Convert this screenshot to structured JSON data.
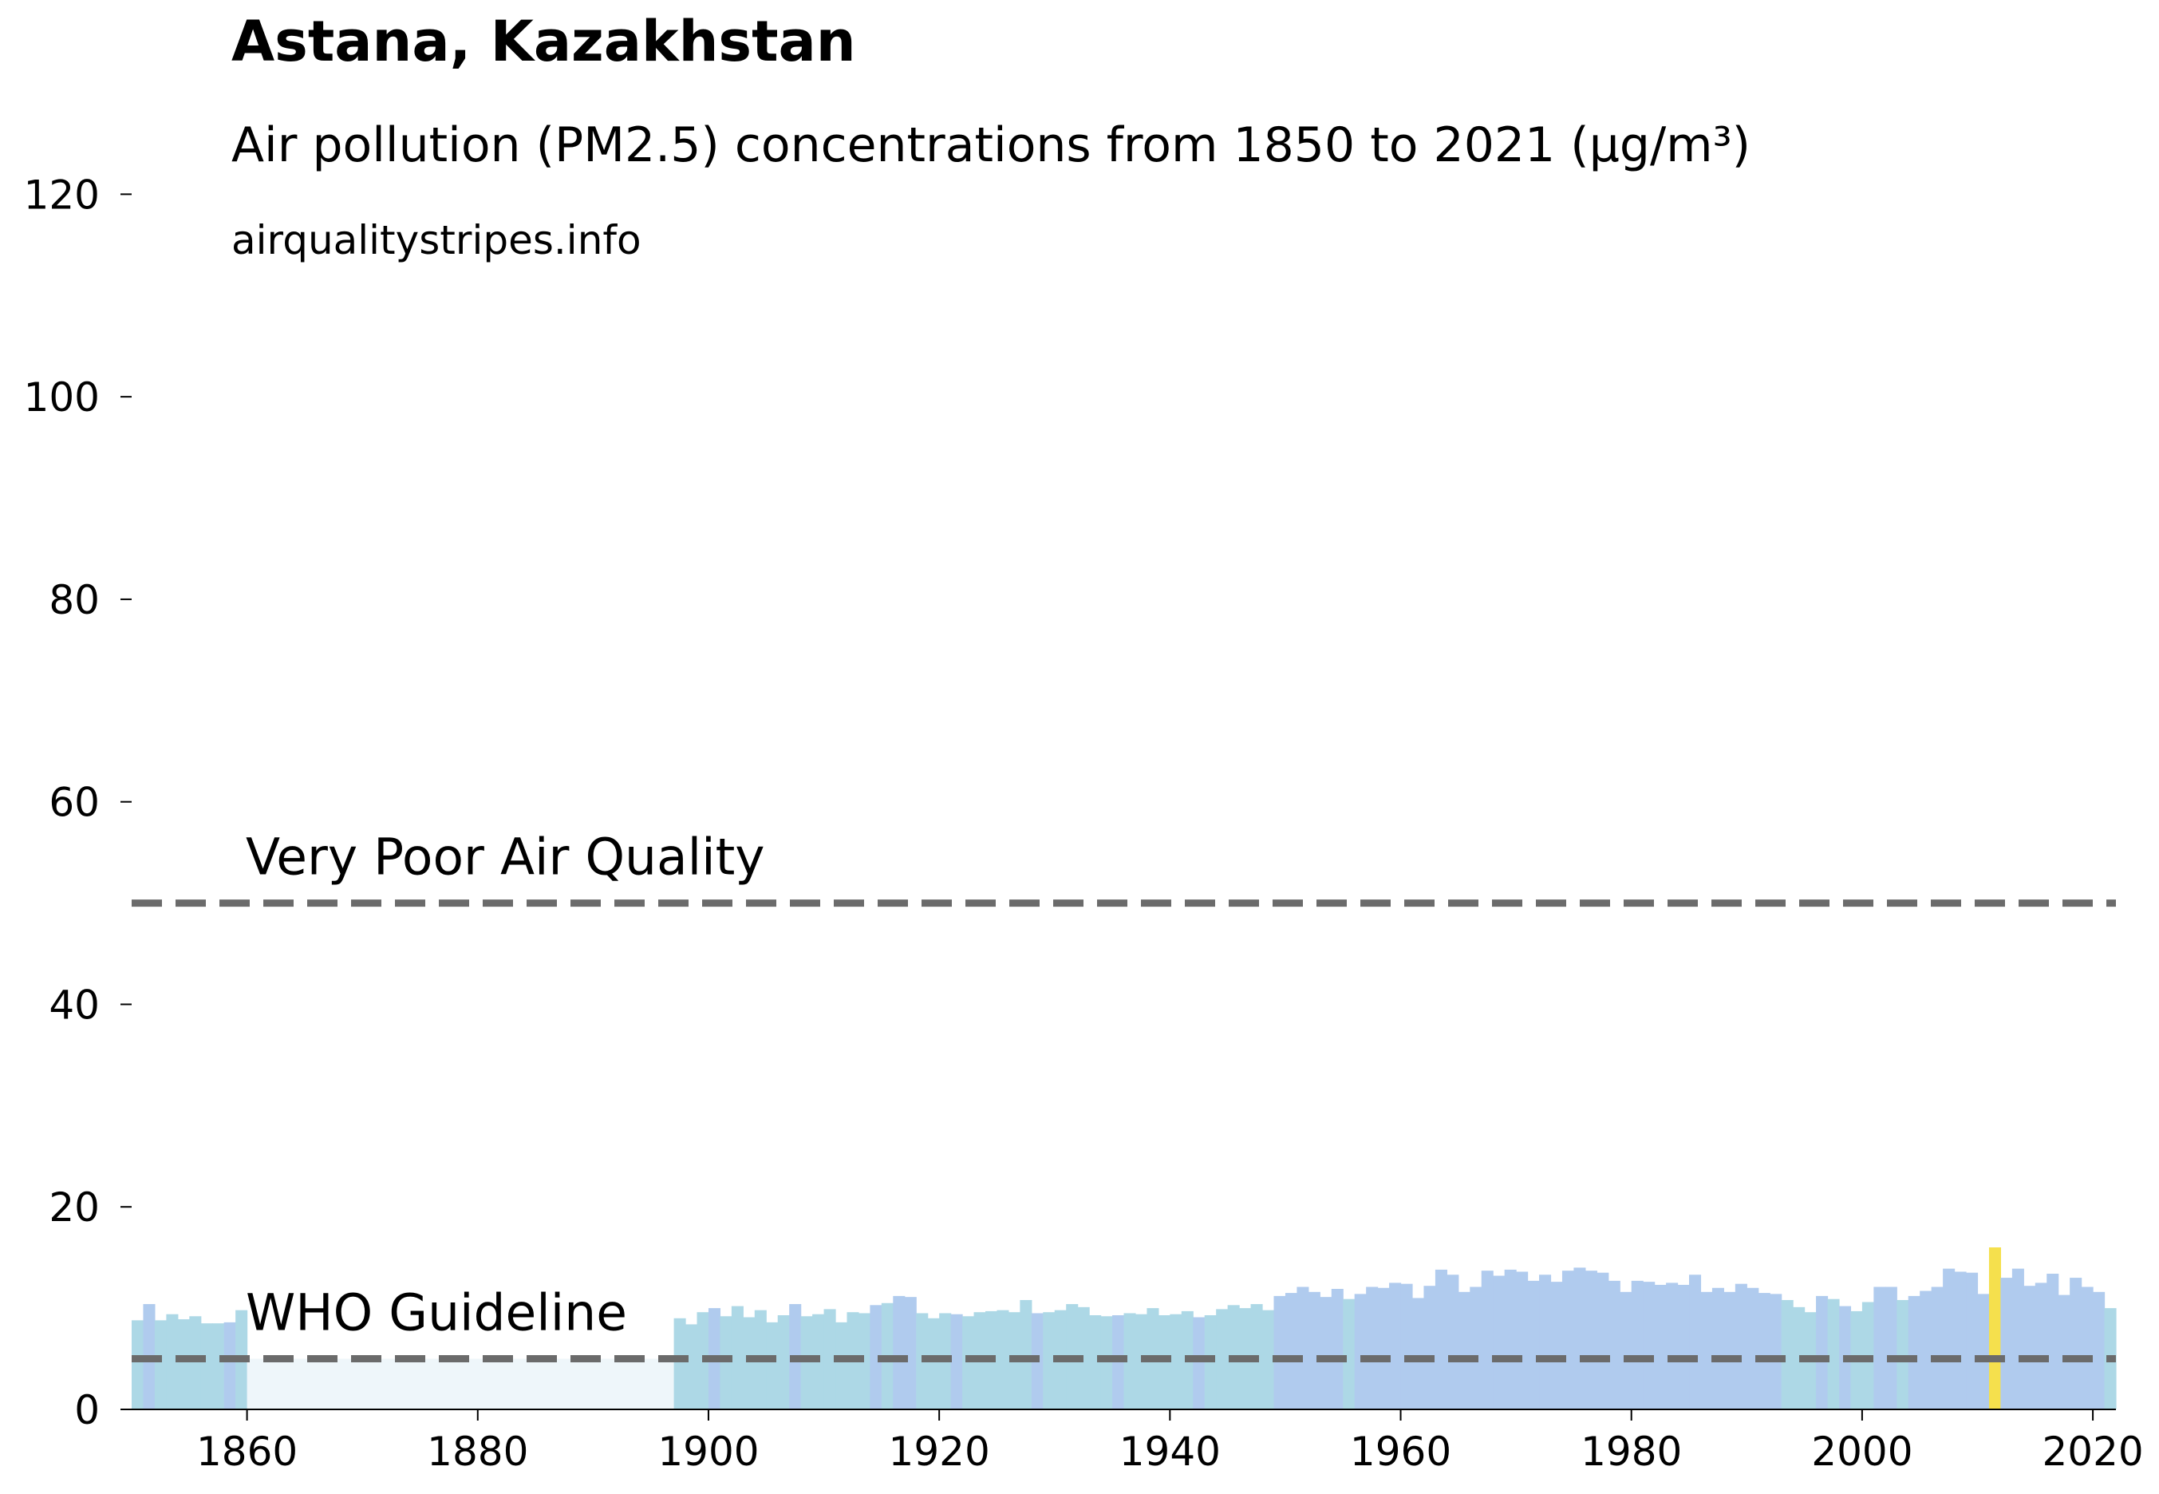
{
  "chart_data": {
    "type": "bar",
    "title": "Astana, Kazakhstan",
    "subtitle": "Air pollution (PM2.5) concentrations from 1850 to 2021 (µg/m³)",
    "source": "airqualitystripes.info",
    "xlabel": "",
    "ylabel": "",
    "xlim": [
      1850,
      2022
    ],
    "ylim": [
      0,
      122
    ],
    "x_ticks": [
      1860,
      1880,
      1900,
      1920,
      1940,
      1960,
      1980,
      2000,
      2020
    ],
    "y_ticks": [
      0,
      20,
      40,
      60,
      80,
      100,
      120
    ],
    "grid": false,
    "legend": "none",
    "start_year": 1850,
    "values": [
      8.8,
      10.4,
      8.8,
      9.4,
      8.9,
      9.2,
      8.5,
      8.5,
      8.6,
      9.8,
      5.0,
      5.0,
      5.0,
      5.0,
      5.0,
      5.0,
      5.0,
      5.0,
      5.0,
      5.0,
      5.0,
      5.0,
      5.0,
      5.0,
      5.0,
      5.0,
      5.0,
      5.0,
      5.0,
      5.0,
      5.0,
      5.0,
      5.0,
      5.0,
      5.0,
      5.0,
      5.0,
      5.0,
      5.0,
      5.0,
      5.0,
      5.0,
      5.0,
      5.0,
      5.0,
      5.0,
      5.0,
      9.0,
      8.4,
      9.6,
      10.0,
      9.2,
      10.2,
      9.1,
      9.8,
      8.6,
      9.3,
      10.4,
      9.2,
      9.4,
      9.9,
      8.6,
      9.6,
      9.5,
      10.3,
      10.5,
      11.2,
      11.1,
      9.5,
      9.0,
      9.5,
      9.4,
      9.2,
      9.6,
      9.7,
      9.8,
      9.6,
      10.8,
      9.5,
      9.6,
      9.8,
      10.4,
      10.1,
      9.3,
      9.2,
      9.3,
      9.5,
      9.4,
      10.0,
      9.3,
      9.4,
      9.7,
      9.1,
      9.3,
      9.9,
      10.3,
      10.0,
      10.4,
      9.8,
      11.2,
      11.5,
      12.1,
      11.6,
      11.1,
      11.9,
      10.9,
      11.4,
      12.1,
      12.0,
      12.5,
      12.4,
      11.0,
      12.2,
      13.8,
      13.3,
      11.6,
      12.1,
      13.7,
      13.2,
      13.8,
      13.6,
      12.7,
      13.3,
      12.6,
      13.7,
      14.0,
      13.7,
      13.5,
      12.7,
      11.6,
      12.7,
      12.6,
      12.3,
      12.5,
      12.3,
      13.3,
      11.6,
      12.0,
      11.6,
      12.4,
      12.0,
      11.5,
      11.4,
      10.8,
      10.1,
      9.6,
      11.2,
      10.9,
      10.2,
      9.7,
      10.6,
      12.1,
      12.1,
      10.8,
      11.2,
      11.7,
      12.1,
      13.9,
      13.6,
      13.5,
      11.4,
      16.0,
      13.0,
      13.9,
      12.2,
      12.5,
      13.4,
      11.3,
      13.0,
      12.1,
      11.6,
      10.0
    ],
    "lines": [
      {
        "label": "Very Poor Air Quality",
        "value": 50
      },
      {
        "label": "WHO Guideline",
        "value": 5
      }
    ],
    "colors": {
      "bar_teal": "#add8e6",
      "bar_blue": "#b0cbee",
      "bar_pale": "#eef6fa",
      "highlight": "#f5e04d",
      "line": "#6b6b6b",
      "axis": "#000000"
    }
  }
}
